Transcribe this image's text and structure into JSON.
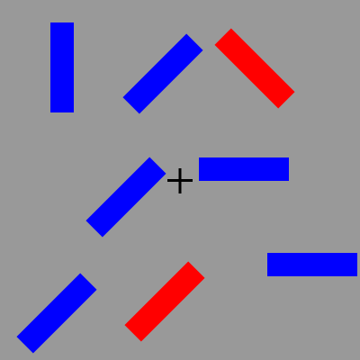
{
  "display": {
    "background_color": "#999999",
    "fixation_symbol": "plus",
    "fixation_color": "#000000"
  },
  "stimuli": [
    {
      "id": "bar-1",
      "color": "#0000ff",
      "orientation_deg": 90
    },
    {
      "id": "bar-2",
      "color": "#0000ff",
      "orientation_deg": 45
    },
    {
      "id": "bar-3",
      "color": "#ff0000",
      "orientation_deg": -45
    },
    {
      "id": "bar-4",
      "color": "#0000ff",
      "orientation_deg": 45
    },
    {
      "id": "bar-5",
      "color": "#0000ff",
      "orientation_deg": 0
    },
    {
      "id": "bar-6",
      "color": "#0000ff",
      "orientation_deg": 0
    },
    {
      "id": "bar-7",
      "color": "#0000ff",
      "orientation_deg": 45
    },
    {
      "id": "bar-8",
      "color": "#ff0000",
      "orientation_deg": 45
    }
  ]
}
